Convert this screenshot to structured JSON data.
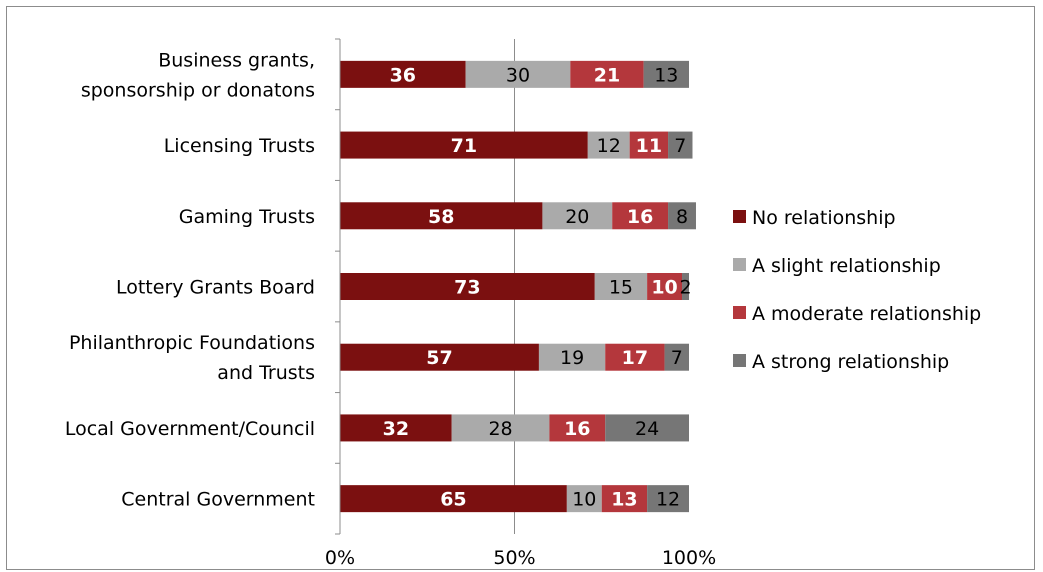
{
  "chart_data": {
    "type": "bar",
    "orientation": "horizontal",
    "stacked": "percent",
    "title": "",
    "xlabel": "",
    "ylabel": "",
    "xlim": [
      0,
      100
    ],
    "x_ticks": [
      "0%",
      "50%",
      "100%"
    ],
    "grid": "vertical at 50% only",
    "legend_position": "right",
    "categories": [
      "Business grants,\nsponsorship or donatons",
      "Licensing Trusts",
      "Gaming Trusts",
      "Lottery Grants  Board",
      "Philanthropic Foundations\nand Trusts",
      "Local Government/Council",
      "Central Government"
    ],
    "series": [
      {
        "name": "No relationship",
        "color": "#7b1010",
        "label_color": "#ffffff",
        "values": [
          36,
          71,
          58,
          73,
          57,
          32,
          65
        ]
      },
      {
        "name": "A slight relationship",
        "color": "#aaaaaa",
        "label_color": "#000000",
        "values": [
          30,
          12,
          20,
          15,
          19,
          28,
          10
        ]
      },
      {
        "name": "A moderate relationship",
        "color": "#b4373c",
        "label_color": "#ffffff",
        "values": [
          21,
          11,
          16,
          10,
          17,
          16,
          13
        ]
      },
      {
        "name": "A strong relationship",
        "color": "#767676",
        "label_color": "#000000",
        "values": [
          13,
          7,
          8,
          2,
          7,
          24,
          12
        ]
      }
    ]
  }
}
